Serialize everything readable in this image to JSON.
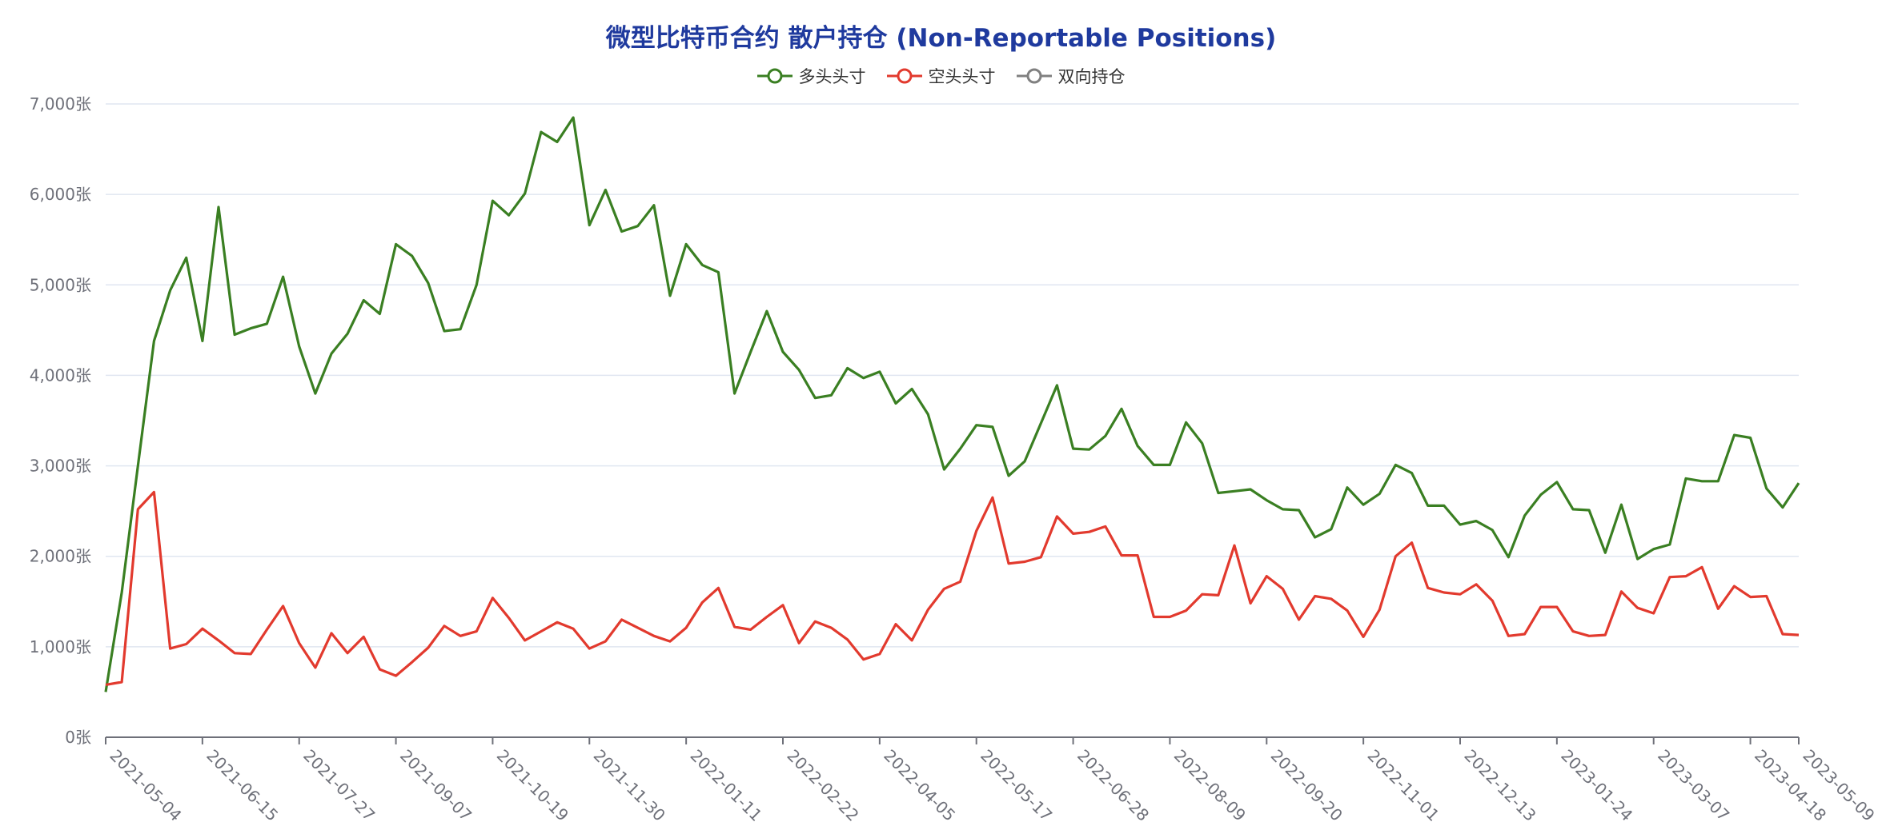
{
  "chart_data": {
    "type": "line",
    "title": "微型比特币合约 散户持仓 (Non-Reportable Positions)",
    "xlabel": "",
    "ylabel": "",
    "y_unit": "张",
    "ylim": [
      0,
      7000
    ],
    "y_ticks": [
      0,
      1000,
      2000,
      3000,
      4000,
      5000,
      6000,
      7000
    ],
    "y_tick_labels": [
      "0张",
      "1,000张",
      "2,000张",
      "3,000张",
      "4,000张",
      "5,000张",
      "6,000张",
      "7,000张"
    ],
    "x_tick_labels": [
      "2021-05-04",
      "2021-06-15",
      "2021-07-27",
      "2021-09-07",
      "2021-10-19",
      "2021-11-30",
      "2022-01-11",
      "2022-02-22",
      "2022-04-05",
      "2022-05-17",
      "2022-06-28",
      "2022-08-09",
      "2022-09-20",
      "2022-11-01",
      "2022-12-13",
      "2023-01-24",
      "2023-03-07",
      "2023-04-18",
      "2023-05-09"
    ],
    "x_start": "2021-05-04",
    "x_interval": "weekly",
    "legend_position": "top-center",
    "grid": true,
    "series": [
      {
        "name": "多头头寸",
        "color": "#3a7f22",
        "values": [
          500,
          1600,
          3000,
          4380,
          4940,
          5300,
          4380,
          5860,
          4450,
          4520,
          4570,
          5090,
          4320,
          3800,
          4240,
          4460,
          4830,
          4680,
          5450,
          5320,
          5020,
          4490,
          4510,
          5000,
          5930,
          5770,
          6010,
          6690,
          6580,
          6850,
          5660,
          6050,
          5590,
          5650,
          5880,
          4880,
          5450,
          5220,
          5140,
          3800,
          4260,
          4710,
          4260,
          4060,
          3750,
          3780,
          4080,
          3970,
          4040,
          3690,
          3850,
          3570,
          2960,
          3190,
          3450,
          3430,
          2890,
          3050,
          3470,
          3890,
          3190,
          3180,
          3330,
          3630,
          3220,
          3010,
          3010,
          3480,
          3250,
          2700,
          2720,
          2740,
          2620,
          2520,
          2510,
          2210,
          2300,
          2760,
          2570,
          2690,
          3010,
          2920,
          2560,
          2560,
          2350,
          2390,
          2290,
          1990,
          2450,
          2680,
          2820,
          2520,
          2510,
          2040,
          2570,
          1970,
          2080,
          2130,
          2860,
          2830,
          2830,
          3340,
          3310,
          2750,
          2540,
          2810
        ]
      },
      {
        "name": "空头头寸",
        "color": "#e23a2e",
        "values": [
          580,
          610,
          2520,
          2710,
          980,
          1030,
          1200,
          1070,
          930,
          920,
          1190,
          1450,
          1040,
          770,
          1150,
          930,
          1110,
          750,
          680,
          830,
          990,
          1230,
          1120,
          1170,
          1540,
          1320,
          1070,
          1170,
          1270,
          1200,
          980,
          1060,
          1300,
          1210,
          1120,
          1060,
          1210,
          1490,
          1650,
          1220,
          1190,
          1330,
          1460,
          1040,
          1280,
          1210,
          1080,
          860,
          920,
          1250,
          1070,
          1410,
          1640,
          1720,
          2280,
          2650,
          1920,
          1940,
          1990,
          2440,
          2250,
          2270,
          2330,
          2010,
          2010,
          1330,
          1330,
          1400,
          1580,
          1570,
          2120,
          1480,
          1780,
          1640,
          1300,
          1560,
          1530,
          1400,
          1110,
          1410,
          2000,
          2150,
          1650,
          1600,
          1580,
          1690,
          1510,
          1120,
          1140,
          1440,
          1440,
          1170,
          1120,
          1130,
          1610,
          1430,
          1370,
          1770,
          1780,
          1880,
          1420,
          1670,
          1550,
          1560,
          1140,
          1130
        ]
      },
      {
        "name": "双向持仓",
        "color": "#808080",
        "values": []
      }
    ]
  }
}
